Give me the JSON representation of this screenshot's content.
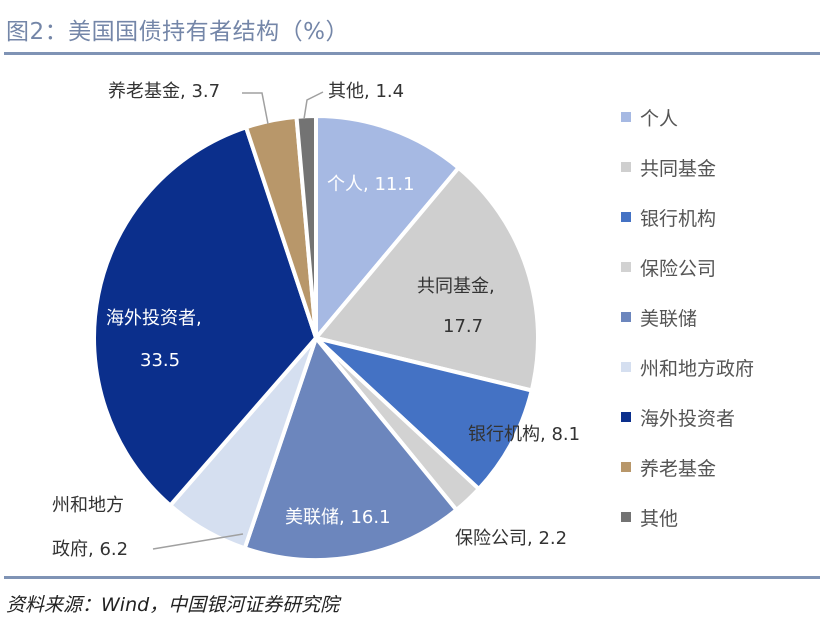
{
  "title": "图2：美国国债持有者结构（%）",
  "source": "资料来源：Wind，中国银河证券研究院",
  "chart_data": {
    "type": "pie",
    "title": "图2：美国国债持有者结构（%）",
    "start_angle": "12 o'clock",
    "direction": "clockwise",
    "legend_position": "right",
    "slices": [
      {
        "name": "个人",
        "value": 11.1,
        "color": "#a6b9e3"
      },
      {
        "name": "共同基金",
        "value": 17.7,
        "color": "#cfcfcf"
      },
      {
        "name": "银行机构",
        "value": 8.1,
        "color": "#4472c4"
      },
      {
        "name": "保险公司",
        "value": 2.2,
        "color": "#d2d2d2"
      },
      {
        "name": "美联储",
        "value": 16.1,
        "color": "#6c86bd"
      },
      {
        "name": "州和地方政府",
        "value": 6.2,
        "color": "#d5dff0"
      },
      {
        "name": "海外投资者",
        "value": 33.5,
        "color": "#0b2f8c"
      },
      {
        "name": "养老基金",
        "value": 3.7,
        "color": "#b8976a"
      },
      {
        "name": "其他",
        "value": 1.4,
        "color": "#737373"
      }
    ],
    "label_split": {
      "州和地方政府": [
        "州和地方",
        "政府"
      ]
    }
  }
}
